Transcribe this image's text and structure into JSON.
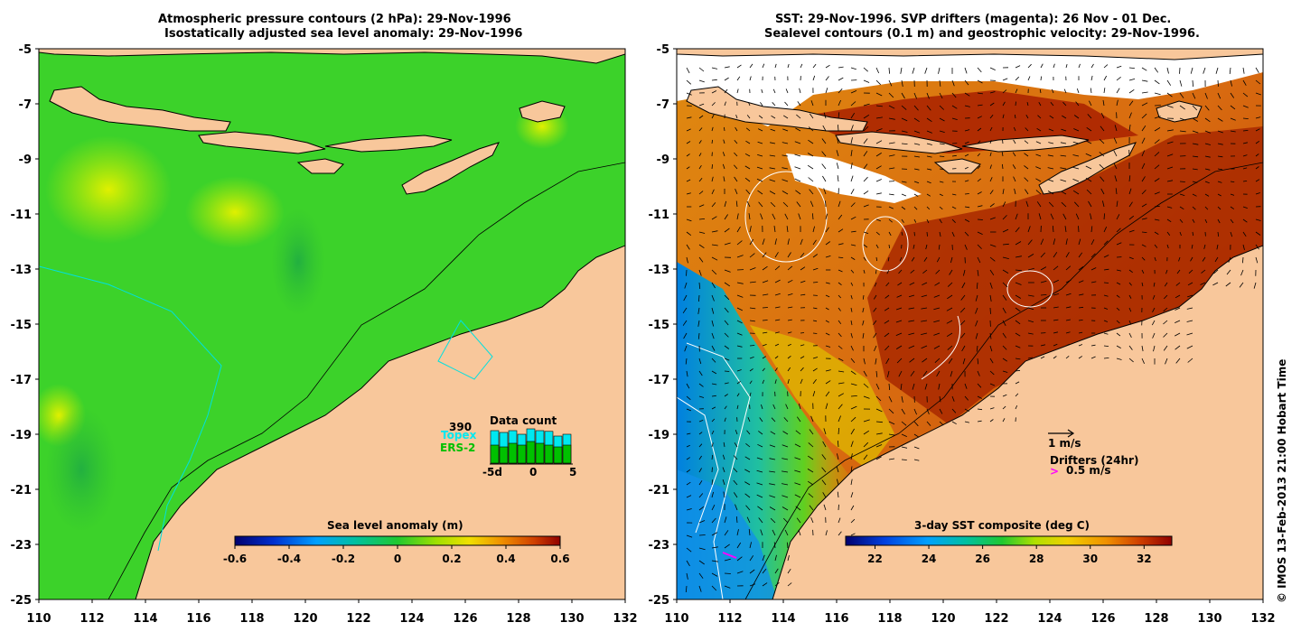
{
  "left_panel": {
    "title_line1": "Atmospheric pressure contours (2 hPa): 29-Nov-1996",
    "title_line2": "Isostatically adjusted sea level anomaly: 29-Nov-1996",
    "colorbar_label": "Sea level anomaly (m)",
    "colorbar_ticks": [
      "-0.6",
      "-0.4",
      "-0.2",
      "0",
      "0.2",
      "0.4",
      "0.6"
    ],
    "data_count": {
      "title": "Data count",
      "max_label": "390",
      "topex_label": "Topex",
      "ers_label": "ERS-2",
      "x_ticks": [
        "-5d",
        "0",
        "5"
      ],
      "topex_fraction": [
        0.9,
        0.85,
        0.9,
        0.8,
        0.95,
        0.9,
        0.88,
        0.75,
        0.8
      ],
      "ers_fraction": [
        0.5,
        0.45,
        0.55,
        0.5,
        0.6,
        0.55,
        0.5,
        0.45,
        0.5
      ]
    }
  },
  "right_panel": {
    "title_line1": "SST: 29-Nov-1996. SVP drifters (magenta): 26 Nov - 01 Dec.",
    "title_line2": "Sealevel contours (0.1 m) and geostrophic velocity: 29-Nov-1996.",
    "colorbar_label": "3-day SST composite (deg C)",
    "colorbar_ticks": [
      "22",
      "24",
      "26",
      "28",
      "30",
      "32"
    ],
    "velocity_scale_label": "1 m/s",
    "drifters_label": "Drifters (24hr)",
    "drifter_symbol": ">",
    "drifter_scale_label": "0.5 m/s"
  },
  "axes": {
    "lon_ticks": [
      "110",
      "112",
      "114",
      "116",
      "118",
      "120",
      "122",
      "124",
      "126",
      "128",
      "130",
      "132"
    ],
    "lat_ticks": [
      "-5",
      "-7",
      "-9",
      "-11",
      "-13",
      "-15",
      "-17",
      "-19",
      "-21",
      "-23",
      "-25"
    ]
  },
  "copyright": "© IMOS 13-Feb-2013 21:00 Hobart Time",
  "colors": {
    "land": "#f8c79b",
    "ocean_green": "#33d41a",
    "sst_dark_red": "#a82000",
    "sst_orange": "#e08010",
    "drifter_magenta": "#ff00ff",
    "topex_cyan": "#00e8f0",
    "ers_green": "#00c000"
  }
}
